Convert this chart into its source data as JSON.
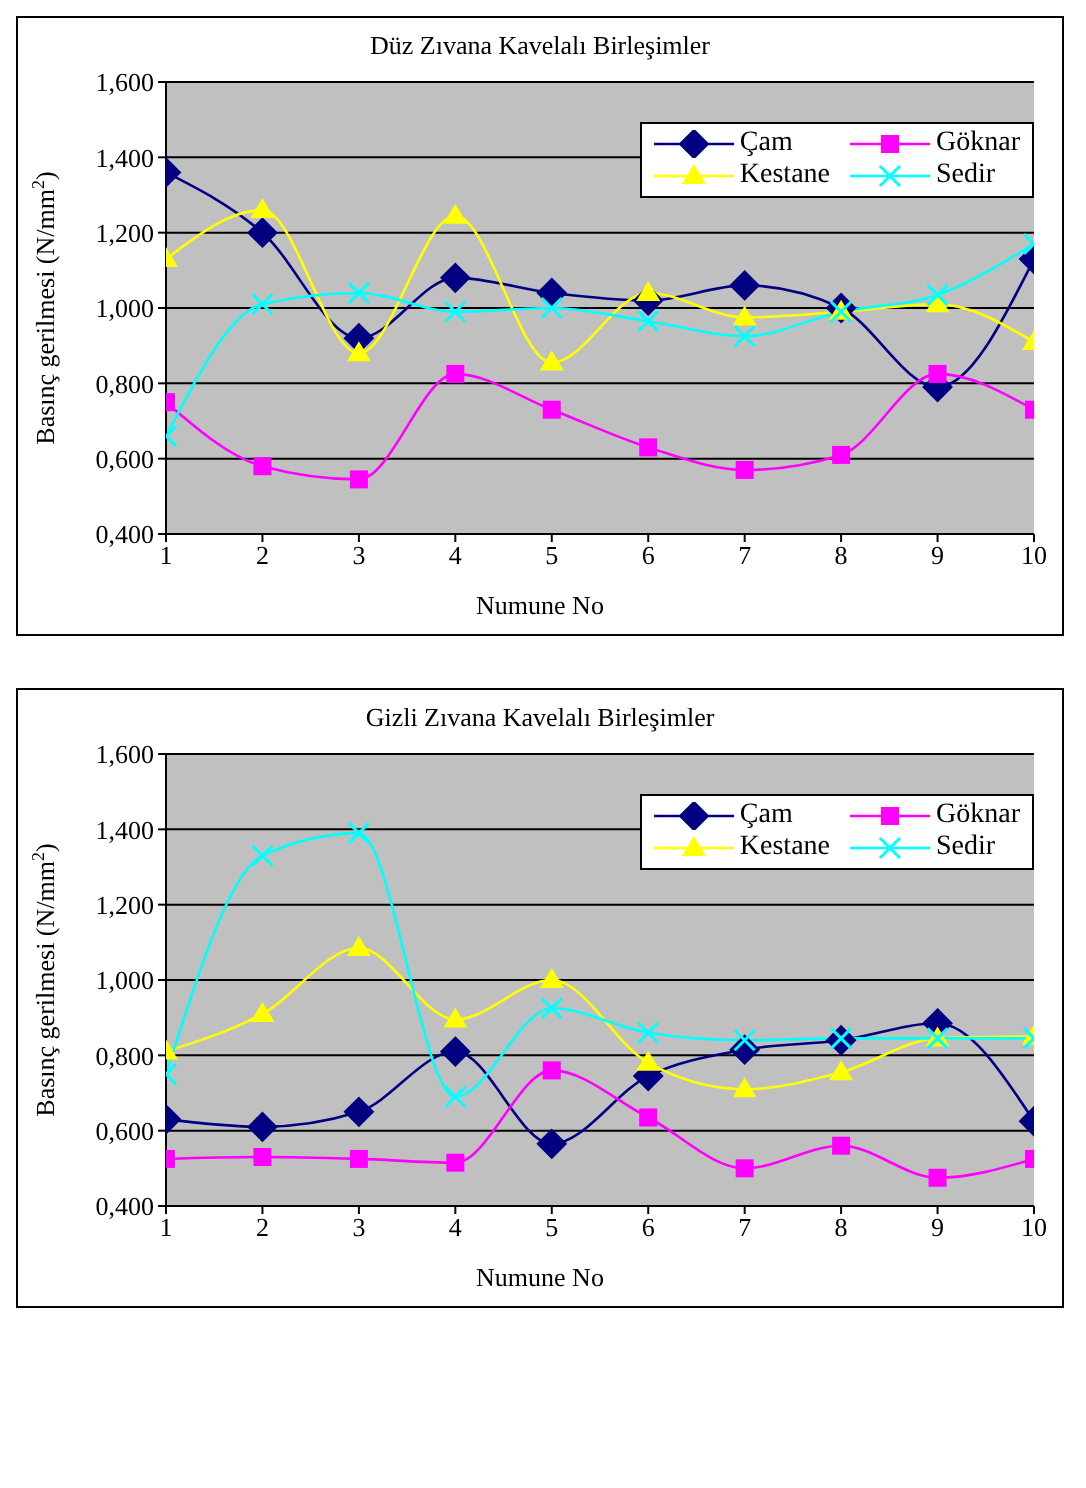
{
  "chart_data": [
    {
      "type": "line",
      "title": "Düz Zıvana Kavelalı Birleşimler",
      "xlabel": "Numune No",
      "ylabel": "Basınç gerilmesi (N/mm$^{2}$)",
      "x": [
        1,
        2,
        3,
        4,
        5,
        6,
        7,
        8,
        9,
        10
      ],
      "xlim": [
        1,
        10
      ],
      "xticks": [
        1,
        2,
        3,
        4,
        5,
        6,
        7,
        8,
        9,
        10
      ],
      "ylim": [
        0.4,
        1.6
      ],
      "yticks": [
        {
          "value": 0.4,
          "label": "0,400"
        },
        {
          "value": 0.6,
          "label": "0,600"
        },
        {
          "value": 0.8,
          "label": "0,800"
        },
        {
          "value": 1.0,
          "label": "1,000"
        },
        {
          "value": 1.2,
          "label": "1,200"
        },
        {
          "value": 1.4,
          "label": "1,400"
        },
        {
          "value": 1.6,
          "label": "1,600"
        }
      ],
      "grid": "y",
      "legend": "top right",
      "series": [
        {
          "name": "Çam",
          "color": "#000080",
          "marker": "diamond",
          "values": [
            1.36,
            1.2,
            0.92,
            1.08,
            1.04,
            1.02,
            1.06,
            1.0,
            0.79,
            1.13
          ]
        },
        {
          "name": "Göknar",
          "color": "#ff00ff",
          "marker": "square",
          "values": [
            0.75,
            0.58,
            0.545,
            0.825,
            0.73,
            0.63,
            0.57,
            0.61,
            0.825,
            0.73
          ]
        },
        {
          "name": "Kestane",
          "color": "#ffff00",
          "marker": "triangle",
          "values": [
            1.13,
            1.26,
            0.88,
            1.245,
            0.855,
            1.04,
            0.975,
            0.99,
            1.01,
            0.91
          ]
        },
        {
          "name": "Sedir",
          "color": "#00ffff",
          "marker": "cross",
          "values": [
            0.66,
            1.01,
            1.04,
            0.99,
            1.0,
            0.965,
            0.925,
            0.99,
            1.035,
            1.17
          ]
        }
      ]
    },
    {
      "type": "line",
      "title": "Gizli Zıvana Kavelalı Birleşimler",
      "xlabel": "Numune No",
      "ylabel": "Basınç gerilmesi (N/mm$^{2}$)",
      "x": [
        1,
        2,
        3,
        4,
        5,
        6,
        7,
        8,
        9,
        10
      ],
      "xlim": [
        1,
        10
      ],
      "xticks": [
        1,
        2,
        3,
        4,
        5,
        6,
        7,
        8,
        9,
        10
      ],
      "ylim": [
        0.4,
        1.6
      ],
      "yticks": [
        {
          "value": 0.4,
          "label": "0,400"
        },
        {
          "value": 0.6,
          "label": "0,600"
        },
        {
          "value": 0.8,
          "label": "0,800"
        },
        {
          "value": 1.0,
          "label": "1,000"
        },
        {
          "value": 1.2,
          "label": "1,200"
        },
        {
          "value": 1.4,
          "label": "1,400"
        },
        {
          "value": 1.6,
          "label": "1,600"
        }
      ],
      "grid": "y",
      "legend": "top right",
      "series": [
        {
          "name": "Çam",
          "color": "#000080",
          "marker": "diamond",
          "values": [
            0.63,
            0.61,
            0.65,
            0.81,
            0.565,
            0.745,
            0.815,
            0.84,
            0.885,
            0.625
          ]
        },
        {
          "name": "Göknar",
          "color": "#ff00ff",
          "marker": "square",
          "values": [
            0.525,
            0.53,
            0.525,
            0.515,
            0.76,
            0.635,
            0.5,
            0.56,
            0.475,
            0.525
          ]
        },
        {
          "name": "Kestane",
          "color": "#ffff00",
          "marker": "triangle",
          "values": [
            0.81,
            0.91,
            1.085,
            0.895,
            1.0,
            0.78,
            0.71,
            0.755,
            0.845,
            0.85
          ]
        },
        {
          "name": "Sedir",
          "color": "#00ffff",
          "marker": "cross",
          "values": [
            0.75,
            1.33,
            1.39,
            0.69,
            0.925,
            0.86,
            0.84,
            0.845,
            0.845,
            0.845
          ]
        }
      ]
    }
  ]
}
